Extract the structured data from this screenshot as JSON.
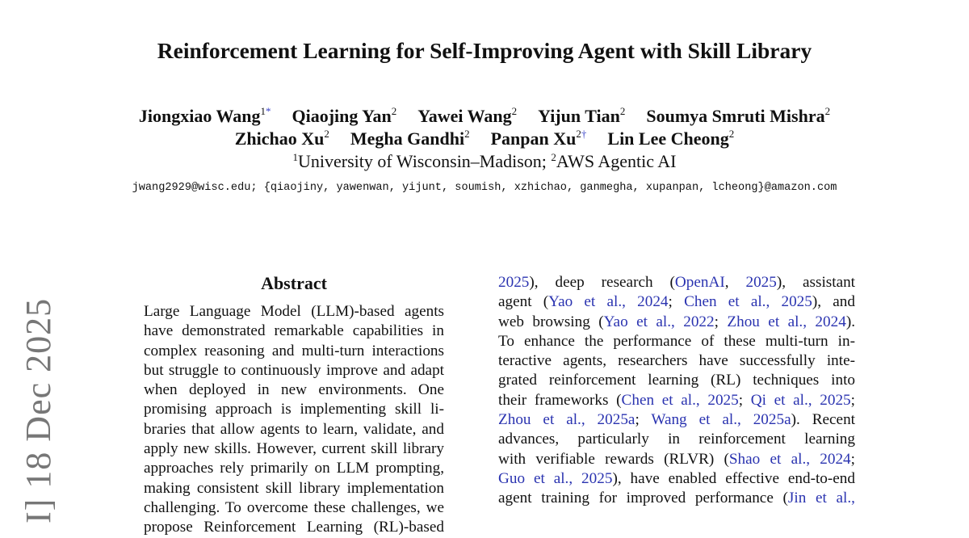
{
  "title": "Reinforcement Learning for Self-Improving Agent with Skill Library",
  "authors_row1": [
    {
      "name": "Jiongxiao Wang",
      "sup": "1",
      "mark": "*"
    },
    {
      "name": "Qiaojing Yan",
      "sup": "2",
      "mark": ""
    },
    {
      "name": "Yawei Wang",
      "sup": "2",
      "mark": ""
    },
    {
      "name": "Yijun Tian",
      "sup": "2",
      "mark": ""
    },
    {
      "name": "Soumya Smruti Mishra",
      "sup": "2",
      "mark": ""
    }
  ],
  "authors_row2": [
    {
      "name": "Zhichao Xu",
      "sup": "2",
      "mark": ""
    },
    {
      "name": "Megha Gandhi",
      "sup": "2",
      "mark": ""
    },
    {
      "name": "Panpan Xu",
      "sup": "2",
      "mark": "†"
    },
    {
      "name": "Lin Lee Cheong",
      "sup": "2",
      "mark": ""
    }
  ],
  "affiliation": {
    "sup1": "1",
    "aff1": "University of Wisconsin–Madison; ",
    "sup2": "2",
    "aff2": "AWS Agentic AI"
  },
  "emails": "jwang2929@wisc.edu; {qiaojiny, yawenwan, yijunt, soumish, xzhichao, ganmegha, xupanpan, lcheong}@amazon.com",
  "arxiv_stamp": "I]  18 Dec 2025",
  "abstract_heading": "Abstract",
  "abstract_lines": [
    [
      {
        "t": "Large Language Model (LLM)-based agents"
      }
    ],
    [
      {
        "t": "have demonstrated remarkable capabilities in"
      }
    ],
    [
      {
        "t": "complex reasoning and multi-turn interactions"
      }
    ],
    [
      {
        "t": "but struggle to continuously improve and adapt"
      }
    ],
    [
      {
        "t": "when deployed in new environments.  One"
      }
    ],
    [
      {
        "t": "promising approach is implementing skill li-"
      }
    ],
    [
      {
        "t": "braries that allow agents to learn, validate, and"
      }
    ],
    [
      {
        "t": "apply new skills. However, current skill library"
      }
    ],
    [
      {
        "t": "approaches rely primarily on LLM prompting,"
      }
    ],
    [
      {
        "t": "making consistent skill library implementation"
      }
    ],
    [
      {
        "t": "challenging. To overcome these challenges, we"
      }
    ],
    [
      {
        "t": "propose Reinforcement Learning (RL)-based"
      }
    ]
  ],
  "intro_lines": [
    [
      {
        "t": "2025",
        "link": true
      },
      {
        "t": "), deep research ("
      },
      {
        "t": "OpenAI",
        "link": true
      },
      {
        "t": ", "
      },
      {
        "t": "2025",
        "link": true
      },
      {
        "t": "), assistant"
      }
    ],
    [
      {
        "t": "agent ("
      },
      {
        "t": "Yao et al., 2024",
        "link": true
      },
      {
        "t": "; "
      },
      {
        "t": "Chen et al., 2025",
        "link": true
      },
      {
        "t": "), and"
      }
    ],
    [
      {
        "t": "web browsing ("
      },
      {
        "t": "Yao et al., 2022",
        "link": true
      },
      {
        "t": "; "
      },
      {
        "t": "Zhou et al., 2024",
        "link": true
      },
      {
        "t": ")."
      }
    ],
    [
      {
        "t": "To enhance the performance of these multi-turn in-"
      }
    ],
    [
      {
        "t": "teractive agents, researchers have successfully inte-"
      }
    ],
    [
      {
        "t": "grated reinforcement learning (RL) techniques into"
      }
    ],
    [
      {
        "t": "their frameworks ("
      },
      {
        "t": "Chen et al., 2025",
        "link": true
      },
      {
        "t": "; "
      },
      {
        "t": "Qi et al., 2025",
        "link": true
      },
      {
        "t": ";"
      }
    ],
    [
      {
        "t": "Zhou et al., 2025a",
        "link": true
      },
      {
        "t": "; "
      },
      {
        "t": "Wang et al., 2025a",
        "link": true
      },
      {
        "t": ").  Recent"
      }
    ],
    [
      {
        "t": "advances, particularly in reinforcement learning"
      }
    ],
    [
      {
        "t": "with verifiable rewards (RLVR) ("
      },
      {
        "t": "Shao et al., 2024",
        "link": true
      },
      {
        "t": ";"
      }
    ],
    [
      {
        "t": "Guo et al., 2025",
        "link": true
      },
      {
        "t": "), have enabled effective end-to-end"
      }
    ],
    [
      {
        "t": "agent training for improved performance ("
      },
      {
        "t": "Jin et al.,",
        "link": true
      }
    ]
  ],
  "colors": {
    "link": "#2a33b0",
    "text": "#111111",
    "stamp": "#777777"
  }
}
